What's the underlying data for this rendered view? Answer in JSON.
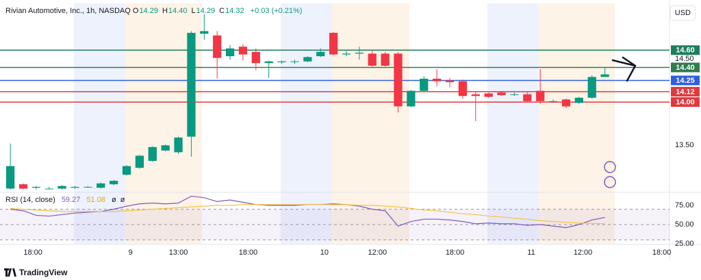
{
  "chart_data": [
    {
      "type": "candlestick",
      "title": "Rivian Automotive, Inc., 1h, NASDAQ",
      "ohlc_header": [
        {
          "key": "O",
          "value": "14.29"
        },
        {
          "key": "H",
          "value": "14.40"
        },
        {
          "key": "L",
          "value": "14.29"
        },
        {
          "key": "C",
          "value": "14.32"
        }
      ],
      "change": "+0.03 (+0.21%)",
      "currency": "USD",
      "x": [
        0,
        1,
        2,
        3,
        4,
        5,
        6,
        7,
        8,
        9,
        10,
        11,
        12,
        13,
        14,
        15,
        16,
        17,
        18,
        19,
        20,
        21,
        22,
        23,
        24,
        25,
        26,
        27,
        28,
        29,
        30,
        31,
        32,
        33,
        34,
        35,
        36,
        37,
        38,
        39,
        40,
        41,
        42,
        43,
        44,
        45,
        46
      ],
      "open": [
        13.0,
        13.05,
        13.01,
        13.0,
        13.0,
        13.01,
        13.02,
        13.01,
        13.05,
        13.16,
        13.24,
        13.32,
        13.44,
        13.42,
        13.6,
        14.79,
        14.77,
        14.53,
        14.64,
        14.58,
        14.45,
        14.46,
        14.47,
        14.47,
        14.53,
        14.8,
        14.55,
        14.56,
        14.56,
        14.56,
        14.56,
        13.95,
        14.13,
        14.27,
        14.25,
        14.24,
        14.09,
        14.1,
        14.11,
        14.09,
        14.09,
        14.13,
        14.01,
        14.03,
        13.99,
        14.05,
        14.29
      ],
      "high": [
        13.52,
        13.06,
        13.03,
        13.02,
        13.04,
        13.03,
        13.03,
        13.07,
        13.1,
        13.27,
        13.39,
        13.49,
        13.51,
        13.6,
        14.82,
        15.02,
        14.82,
        14.66,
        14.67,
        14.62,
        14.48,
        14.48,
        14.49,
        14.53,
        14.62,
        14.81,
        14.59,
        14.64,
        14.6,
        14.58,
        14.58,
        14.14,
        14.3,
        14.38,
        14.28,
        14.26,
        14.12,
        14.11,
        14.12,
        14.11,
        14.12,
        14.38,
        14.03,
        14.04,
        14.06,
        14.31,
        14.4
      ],
      "low": [
        12.99,
        12.99,
        12.99,
        12.99,
        12.99,
        13.0,
        13.01,
        13.0,
        13.04,
        13.15,
        13.23,
        13.31,
        13.43,
        13.4,
        13.37,
        14.72,
        14.27,
        14.49,
        14.48,
        14.37,
        14.28,
        14.44,
        14.44,
        14.46,
        14.52,
        14.54,
        14.53,
        14.49,
        14.41,
        14.41,
        13.88,
        13.94,
        14.12,
        14.18,
        14.17,
        14.04,
        13.78,
        14.05,
        14.07,
        14.07,
        14.0,
        13.98,
        13.99,
        13.93,
        13.98,
        14.04,
        14.29
      ],
      "close": [
        13.26,
        13.0,
        13.02,
        13.0,
        13.03,
        13.02,
        13.02,
        13.06,
        13.09,
        13.26,
        13.38,
        13.48,
        13.5,
        13.59,
        14.8,
        14.82,
        14.51,
        14.62,
        14.55,
        14.45,
        14.47,
        14.47,
        14.47,
        14.52,
        14.58,
        14.55,
        14.56,
        14.57,
        14.42,
        14.42,
        13.95,
        14.13,
        14.27,
        14.24,
        14.23,
        14.07,
        14.07,
        14.06,
        14.08,
        14.09,
        14.01,
        14.01,
        14.01,
        13.95,
        14.05,
        14.29,
        14.32
      ],
      "up_color": "#089981",
      "down_color": "#f23645",
      "xlim": [
        -0.8,
        51
      ],
      "xticks": [
        {
          "value": 1.75,
          "label": "18:00"
        },
        {
          "value": 9.3,
          "label": "9"
        },
        {
          "value": 13,
          "label": "13:00"
        },
        {
          "value": 18.4,
          "label": "18:00"
        },
        {
          "value": 24.3,
          "label": "10"
        },
        {
          "value": 28.4,
          "label": "12:00"
        },
        {
          "value": 34.4,
          "label": "18:00"
        },
        {
          "value": 40.3,
          "label": "11"
        },
        {
          "value": 44.3,
          "label": "12:00"
        },
        {
          "value": 50.4,
          "label": "18:00"
        }
      ],
      "ylim": [
        12.98,
        15.14
      ],
      "yticks": [
        {
          "value": 13.5,
          "label": "13.50"
        },
        {
          "value": 14.5,
          "label": "14.50"
        }
      ],
      "hlines": [
        {
          "value": 14.6,
          "label": "14.60",
          "color": "#1e7d5c"
        },
        {
          "value": 14.4,
          "label": "14.40",
          "color": "#2f7d4e"
        },
        {
          "value": 14.25,
          "label": "14.25",
          "color": "#2f5ee0"
        },
        {
          "value": 14.12,
          "label": "14.12",
          "color": "#e0393e"
        },
        {
          "value": 14.0,
          "label": "14.00",
          "color": "#e0393e"
        }
      ]
    },
    {
      "type": "line",
      "title": "RSI (14, close)",
      "x": [
        0,
        1,
        2,
        3,
        4,
        5,
        6,
        7,
        8,
        9,
        10,
        11,
        12,
        13,
        14,
        15,
        16,
        17,
        18,
        19,
        20,
        21,
        22,
        23,
        24,
        25,
        26,
        27,
        28,
        29,
        30,
        31,
        32,
        33,
        34,
        35,
        36,
        37,
        38,
        39,
        40,
        41,
        42,
        43,
        44,
        45,
        46
      ],
      "series": [
        {
          "color": "#7e57c2",
          "values": [
            70,
            68,
            62,
            61,
            63,
            65,
            66,
            67,
            70,
            74,
            77,
            78,
            77,
            78,
            87,
            85,
            80,
            82,
            79,
            76,
            75,
            75,
            75,
            76,
            76,
            77,
            76,
            74,
            70,
            68,
            48,
            54,
            57,
            57,
            56,
            54,
            51,
            52,
            51,
            51,
            49,
            50,
            48,
            46,
            50,
            56,
            59.27
          ]
        },
        {
          "color": "#f5c342",
          "values": [
            71,
            70,
            69,
            68,
            67,
            67,
            67,
            67,
            67,
            68,
            69,
            70,
            71,
            72,
            73,
            74,
            75,
            75,
            76,
            76,
            76,
            76,
            76,
            76,
            76,
            76,
            76,
            75,
            75,
            74,
            73,
            71,
            69,
            68,
            66,
            64,
            63,
            61,
            60,
            58,
            57,
            55,
            54,
            53,
            52,
            51.5,
            51.08
          ]
        }
      ],
      "xlim": [
        -0.8,
        51
      ],
      "ylim": [
        25,
        88.4
      ],
      "yticks": [
        {
          "value": 75,
          "label": "75.00"
        },
        {
          "value": 50,
          "label": "50.00"
        },
        {
          "value": 25,
          "label": "25.00"
        }
      ],
      "bands": [
        30,
        70
      ],
      "midline": 50
    }
  ]
}
